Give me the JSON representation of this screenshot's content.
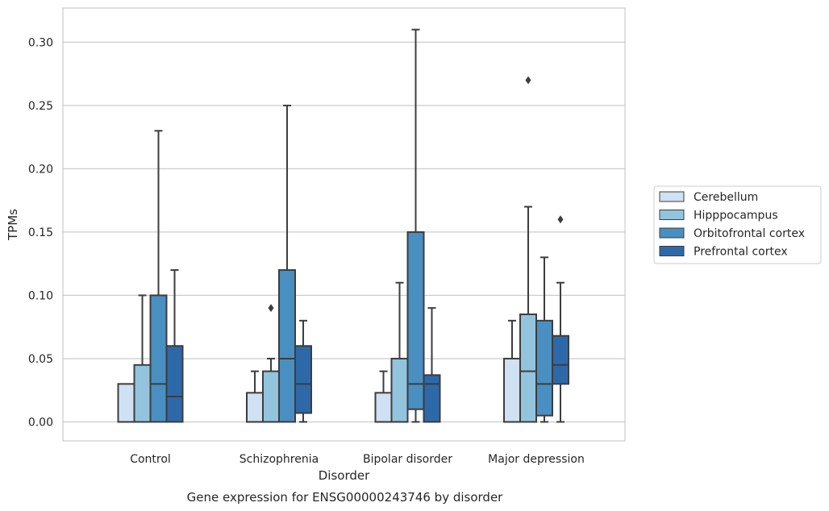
{
  "chart_data": {
    "type": "box",
    "caption": "Gene expression for ENSG00000243746 by disorder",
    "xlabel": "Disorder",
    "ylabel": "TPMs",
    "ylim": [
      -0.015,
      0.327
    ],
    "yticks": [
      "0.00",
      "0.05",
      "0.10",
      "0.15",
      "0.20",
      "0.25",
      "0.30"
    ],
    "ytick_values": [
      0.0,
      0.05,
      0.1,
      0.15,
      0.2,
      0.25,
      0.3
    ],
    "categories": [
      "Control",
      "Schizophrenia",
      "Bipolar disorder",
      "Major depression"
    ],
    "grid": "horizontal",
    "legend_position": "right-outside",
    "series": [
      {
        "name": "Cerebellum",
        "color": "#cfe1f2",
        "boxes": [
          {
            "min": 0.0,
            "q1": 0.0,
            "median": 0.0,
            "q3": 0.03,
            "max": 0.03,
            "outliers": []
          },
          {
            "min": 0.0,
            "q1": 0.0,
            "median": 0.0,
            "q3": 0.023,
            "max": 0.04,
            "outliers": []
          },
          {
            "min": 0.0,
            "q1": 0.0,
            "median": 0.0,
            "q3": 0.023,
            "max": 0.04,
            "outliers": []
          },
          {
            "min": 0.0,
            "q1": 0.0,
            "median": 0.0,
            "q3": 0.05,
            "max": 0.08,
            "outliers": []
          }
        ]
      },
      {
        "name": "Hipppocampus",
        "color": "#93c4de",
        "boxes": [
          {
            "min": 0.0,
            "q1": 0.0,
            "median": 0.0,
            "q3": 0.045,
            "max": 0.1,
            "outliers": []
          },
          {
            "min": 0.0,
            "q1": 0.0,
            "median": 0.0,
            "q3": 0.04,
            "max": 0.05,
            "outliers": [
              0.09
            ]
          },
          {
            "min": 0.0,
            "q1": 0.0,
            "median": 0.0,
            "q3": 0.05,
            "max": 0.11,
            "outliers": []
          },
          {
            "min": 0.0,
            "q1": 0.0,
            "median": 0.04,
            "q3": 0.085,
            "max": 0.17,
            "outliers": [
              0.27
            ]
          }
        ]
      },
      {
        "name": "Orbitofrontal cortex",
        "color": "#4a8fc1",
        "boxes": [
          {
            "min": 0.0,
            "q1": 0.0,
            "median": 0.03,
            "q3": 0.1,
            "max": 0.23,
            "outliers": []
          },
          {
            "min": 0.0,
            "q1": 0.0,
            "median": 0.05,
            "q3": 0.12,
            "max": 0.25,
            "outliers": []
          },
          {
            "min": 0.0,
            "q1": 0.01,
            "median": 0.03,
            "q3": 0.15,
            "max": 0.31,
            "outliers": []
          },
          {
            "min": 0.0,
            "q1": 0.005,
            "median": 0.03,
            "q3": 0.08,
            "max": 0.13,
            "outliers": []
          }
        ]
      },
      {
        "name": "Prefrontal cortex",
        "color": "#2d69a9",
        "boxes": [
          {
            "min": 0.0,
            "q1": 0.0,
            "median": 0.02,
            "q3": 0.06,
            "max": 0.12,
            "outliers": []
          },
          {
            "min": 0.0,
            "q1": 0.007,
            "median": 0.03,
            "q3": 0.06,
            "max": 0.08,
            "outliers": []
          },
          {
            "min": 0.0,
            "q1": 0.0,
            "median": 0.03,
            "q3": 0.037,
            "max": 0.09,
            "outliers": []
          },
          {
            "min": 0.0,
            "q1": 0.03,
            "median": 0.045,
            "q3": 0.068,
            "max": 0.11,
            "outliers": [
              0.16
            ]
          }
        ]
      }
    ]
  }
}
